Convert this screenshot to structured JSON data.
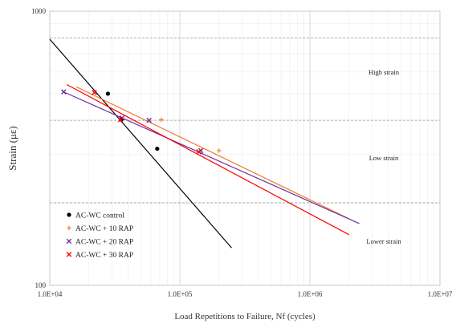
{
  "chart_data": {
    "type": "scatter",
    "title": "",
    "xlabel": "Load Repetitions to Failure, Nf (cycles)",
    "ylabel": "Strain (με)",
    "x_scale": "log",
    "y_scale": "log",
    "xlim": [
      10000,
      10000000
    ],
    "ylim": [
      100,
      1000
    ],
    "x_tick_labels": [
      "1.0E+04",
      "1.0E+05",
      "1.0E+06",
      "1.0E+07"
    ],
    "y_tick_labels": [
      "100",
      "1000"
    ],
    "grid": true,
    "legend_position": "bottom-left",
    "zone_labels": [
      {
        "text": "High strain",
        "strain": 600
      },
      {
        "text": "Low strain",
        "strain": 292
      },
      {
        "text": "Lower strain",
        "strain": 145
      }
    ],
    "strain_boundaries": [
      800,
      400,
      200
    ],
    "series": [
      {
        "name": "AC-WC control",
        "color": "#000000",
        "marker": "circle",
        "points": [
          [
            28000,
            500
          ],
          [
            35500,
            403
          ],
          [
            67000,
            315
          ]
        ],
        "trend": [
          [
            10000,
            790
          ],
          [
            250000,
            137
          ]
        ]
      },
      {
        "name": "AC-WC + 10 RAP",
        "color": "#ED7D31",
        "marker": "plus",
        "points": [
          [
            72000,
            402
          ],
          [
            200000,
            310
          ]
        ],
        "trend": [
          [
            16000,
            530
          ],
          [
            2000000,
            175
          ]
        ]
      },
      {
        "name": "AC-WC + 20 RAP",
        "color": "#7030A0",
        "marker": "x",
        "points": [
          [
            12800,
            508
          ],
          [
            36000,
            408
          ],
          [
            58000,
            400
          ],
          [
            145000,
            310
          ]
        ],
        "trend": [
          [
            12500,
            510
          ],
          [
            2400000,
            168
          ]
        ]
      },
      {
        "name": "AC-WC + 30 RAP",
        "color": "#FF0000",
        "marker": "x",
        "points": [
          [
            22000,
            505
          ],
          [
            35000,
            402
          ],
          [
            140000,
            307
          ]
        ],
        "trend": [
          [
            13500,
            540
          ],
          [
            2000000,
            153
          ]
        ]
      }
    ]
  }
}
